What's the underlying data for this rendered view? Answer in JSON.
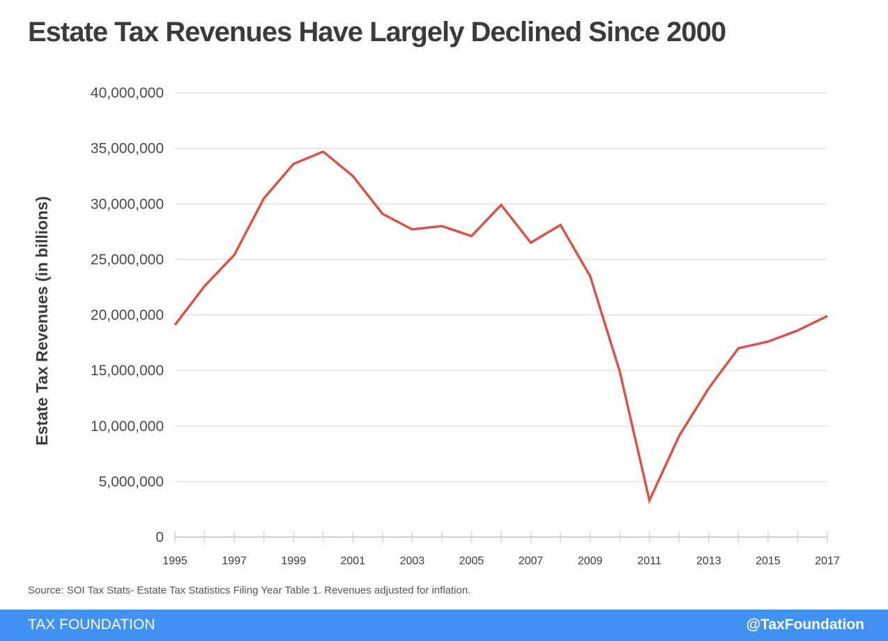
{
  "header": {
    "title": "Estate Tax Revenues Have Largely Declined Since 2000"
  },
  "footer": {
    "source": "Source: SOI Tax Stats- Estate Tax Statistics Filing Year Table 1. Revenues adjusted for inflation.",
    "brand": "TAX FOUNDATION",
    "handle": "@TaxFoundation"
  },
  "colors": {
    "line": "#d9534a",
    "footer": "#4292f4",
    "grid": "#dddddd",
    "title": "#3b3b3b"
  },
  "chart_data": {
    "type": "line",
    "title": "Estate Tax Revenues Have Largely Declined Since 2000",
    "xlabel": "",
    "ylabel": "Estate Tax Revenues  (in billions)",
    "ylim": [
      0,
      40000000
    ],
    "yticks": [
      0,
      5000000,
      10000000,
      15000000,
      20000000,
      25000000,
      30000000,
      35000000,
      40000000
    ],
    "ytick_labels": [
      "0",
      "5,000,000",
      "10,000,000",
      "15,000,000",
      "20,000,000",
      "25,000,000",
      "30,000,000",
      "35,000,000",
      "40,000,000"
    ],
    "xlim": [
      1995,
      2017
    ],
    "xtick_labels": [
      "1995",
      "1997",
      "1999",
      "2001",
      "2003",
      "2005",
      "2007",
      "2009",
      "2011",
      "2013",
      "2015",
      "2017"
    ],
    "grid": true,
    "legend": "none",
    "x": [
      1995,
      1996,
      1997,
      1998,
      1999,
      2000,
      2001,
      2002,
      2003,
      2004,
      2005,
      2006,
      2007,
      2008,
      2009,
      2010,
      2011,
      2012,
      2013,
      2014,
      2015,
      2016,
      2017
    ],
    "series": [
      {
        "name": "Estate Tax Revenues",
        "values": [
          19100000,
          22600000,
          25400000,
          30500000,
          33600000,
          34700000,
          32500000,
          29100000,
          27700000,
          28000000,
          27100000,
          29900000,
          26500000,
          28100000,
          23500000,
          14900000,
          3300000,
          9100000,
          13400000,
          17000000,
          17600000,
          18600000,
          19900000
        ]
      }
    ]
  }
}
